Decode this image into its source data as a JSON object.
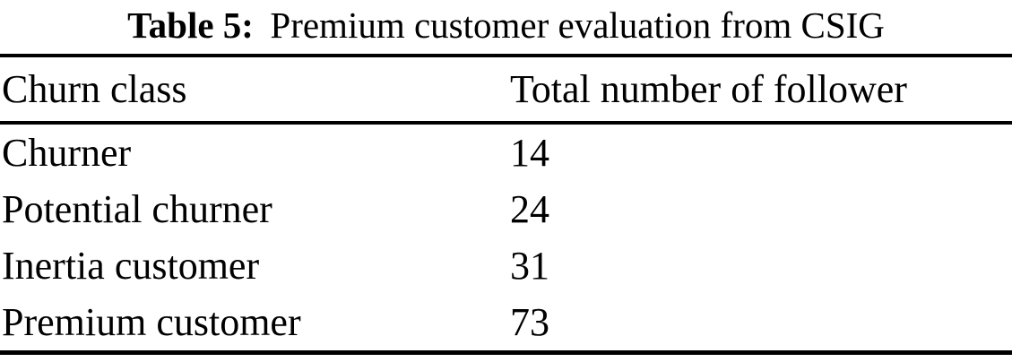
{
  "table": {
    "caption": {
      "label": "Table 5:",
      "text": "Premium customer evaluation from CSIG"
    },
    "columns": [
      "Churn class",
      "Total number of follower"
    ],
    "rows": [
      [
        "Churner",
        "14"
      ],
      [
        "Potential churner",
        "24"
      ],
      [
        "Inertia customer",
        "31"
      ],
      [
        "Premium customer",
        "73"
      ]
    ],
    "colors": {
      "text": "#000000",
      "rule": "#000000",
      "background": "#ffffff"
    }
  }
}
